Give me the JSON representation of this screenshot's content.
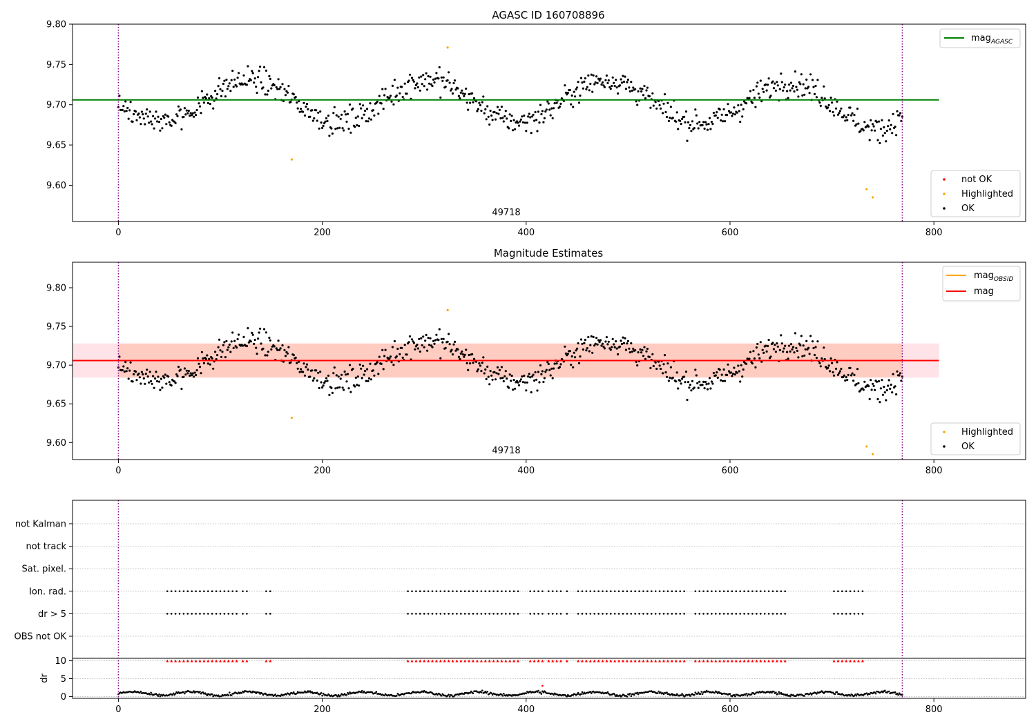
{
  "colors": {
    "ok": "#000000",
    "highlighted": "#ffa500",
    "not_ok": "#ff0000",
    "mag_agasc": "#008000",
    "mag_obsid": "#ffa500",
    "mag": "#ff0000",
    "band_outer": "#ffc0cb",
    "band_inner": "#ffa07a",
    "vline": "#800080",
    "grid": "#b0b0b0"
  },
  "chart_data": [
    {
      "type": "scatter",
      "title": "AGASC ID 160708896",
      "annotation": "49718",
      "xlim": [
        -45,
        890
      ],
      "ylim": [
        9.555,
        9.8
      ],
      "xticks": [
        0,
        200,
        400,
        600,
        800
      ],
      "yticks": [
        9.6,
        9.65,
        9.7,
        9.75,
        9.8
      ],
      "ytick_labels": [
        "9.60",
        "9.65",
        "9.70",
        "9.75",
        "9.80"
      ],
      "mag_agasc": 9.706,
      "mag_agasc_xrange": [
        -45,
        805
      ],
      "vlines": [
        0,
        769
      ],
      "legend_lines": [
        {
          "label": "mag",
          "sub": "AGASC",
          "color_key": "mag_agasc"
        }
      ],
      "legend_points": [
        {
          "label": "not OK",
          "color_key": "not_ok"
        },
        {
          "label": "Highlighted",
          "color_key": "highlighted"
        },
        {
          "label": "OK",
          "color_key": "ok"
        }
      ],
      "highlighted": [
        [
          170,
          9.632
        ],
        [
          323,
          9.771
        ],
        [
          734,
          9.595
        ],
        [
          740,
          9.585
        ]
      ]
    },
    {
      "type": "scatter",
      "title": "Magnitude Estimates",
      "annotation": "49718",
      "xlim": [
        -45,
        890
      ],
      "ylim": [
        9.578,
        9.833
      ],
      "xticks": [
        0,
        200,
        400,
        600,
        800
      ],
      "yticks": [
        9.6,
        9.65,
        9.7,
        9.75,
        9.8
      ],
      "ytick_labels": [
        "9.60",
        "9.65",
        "9.70",
        "9.75",
        "9.80"
      ],
      "mag": 9.706,
      "mag_xrange": [
        -45,
        805
      ],
      "band_outer": [
        9.684,
        9.728
      ],
      "band_inner": [
        9.684,
        9.728
      ],
      "band_inner_xrange": [
        0,
        769
      ],
      "vlines": [
        0,
        769
      ],
      "legend_lines": [
        {
          "label": "mag",
          "sub": "OBSID",
          "color_key": "mag_obsid"
        },
        {
          "label": "mag",
          "sub": "",
          "color_key": "mag"
        }
      ],
      "legend_points": [
        {
          "label": "Highlighted",
          "color_key": "highlighted"
        },
        {
          "label": "OK",
          "color_key": "ok"
        }
      ],
      "highlighted": [
        [
          170,
          9.632
        ],
        [
          323,
          9.771
        ],
        [
          734,
          9.595
        ],
        [
          740,
          9.585
        ]
      ]
    },
    {
      "type": "scatter",
      "title": "",
      "xlim": [
        -45,
        890
      ],
      "xticks": [
        0,
        200,
        400,
        600,
        800
      ],
      "vlines": [
        0,
        769
      ],
      "flag_rows": [
        "not Kalman",
        "not track",
        "Sat. pixel.",
        "Ion. rad.",
        "dr > 5",
        "OBS not OK"
      ],
      "flag_segments": [
        [
          48,
          116
        ],
        [
          122,
          126
        ],
        [
          145,
          150
        ],
        [
          284,
          394
        ],
        [
          404,
          416
        ],
        [
          422,
          434
        ],
        [
          440,
          443
        ],
        [
          451,
          556
        ],
        [
          566,
          656
        ],
        [
          702,
          730
        ]
      ],
      "flag_step": 4,
      "flagged_rows": [
        "Ion. rad.",
        "dr > 5"
      ],
      "dr_ylabel": "dr",
      "dr_yticks": [
        0,
        5,
        10
      ],
      "dr_ylim": [
        -0.5,
        10.5
      ],
      "dr_clip_value": 10,
      "dr_outlier": [
        416,
        3.0
      ]
    }
  ]
}
